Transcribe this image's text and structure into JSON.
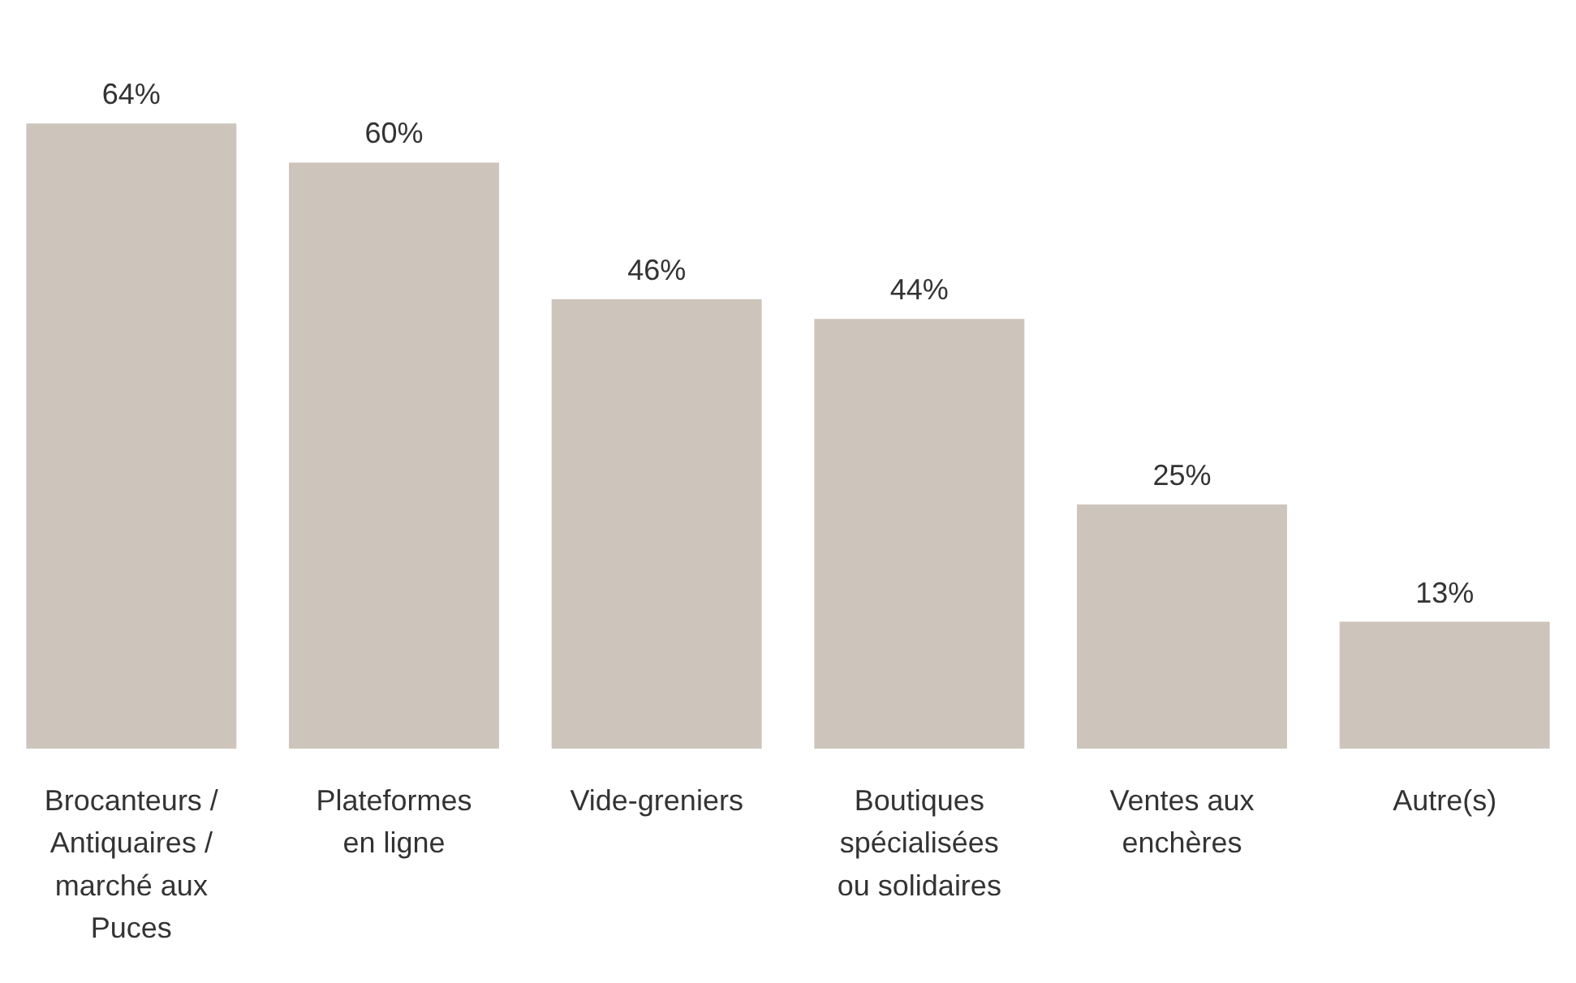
{
  "chart_data": {
    "type": "bar",
    "categories": [
      "Brocanteurs / Antiquaires / marché aux Puces",
      "Plateformes en ligne",
      "Vide-greniers",
      "Boutiques spécialisées ou solidaires",
      "Ventes aux enchères",
      "Autre(s)"
    ],
    "values": [
      64,
      60,
      46,
      44,
      25,
      13
    ],
    "value_labels": [
      "64%",
      "60%",
      "46%",
      "44%",
      "25%",
      "13%"
    ],
    "color": "#cdc5bc",
    "grid": false,
    "legend": false
  }
}
